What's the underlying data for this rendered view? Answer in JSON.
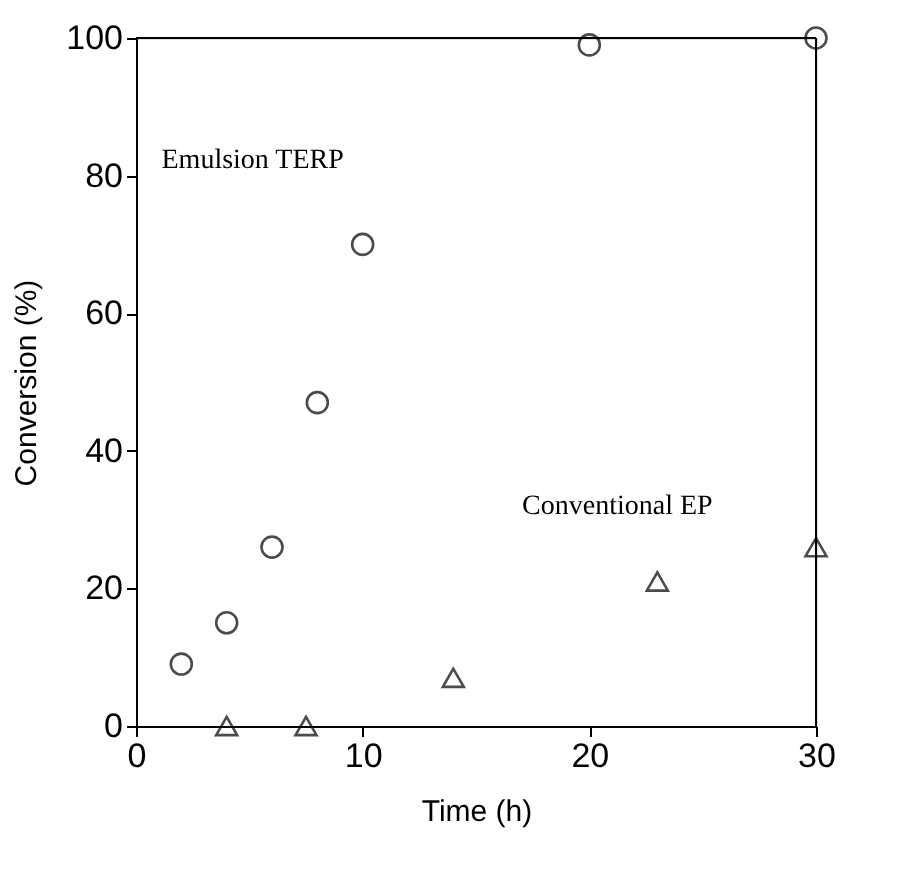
{
  "chart_data": {
    "type": "scatter",
    "xlabel": "Time (h)",
    "ylabel": "Conversion (%)",
    "xlim": [
      0,
      30
    ],
    "xticks": [
      0,
      10,
      20,
      30
    ],
    "ylim": [
      0,
      100
    ],
    "yticks": [
      0,
      20,
      40,
      60,
      80,
      100
    ],
    "grid": false,
    "series": [
      {
        "name": "Emulsion TERP",
        "color": "#000000",
        "marker": "circle",
        "x": [
          2,
          4,
          6,
          8,
          10,
          20,
          30
        ],
        "values": [
          9,
          15,
          26,
          47,
          70,
          99,
          100
        ]
      },
      {
        "name": "Conventional EP",
        "color": "#000000",
        "marker": "triangle",
        "x": [
          4,
          7.5,
          14,
          23,
          30
        ],
        "values": [
          0,
          0,
          7,
          21,
          26
        ]
      }
    ]
  }
}
